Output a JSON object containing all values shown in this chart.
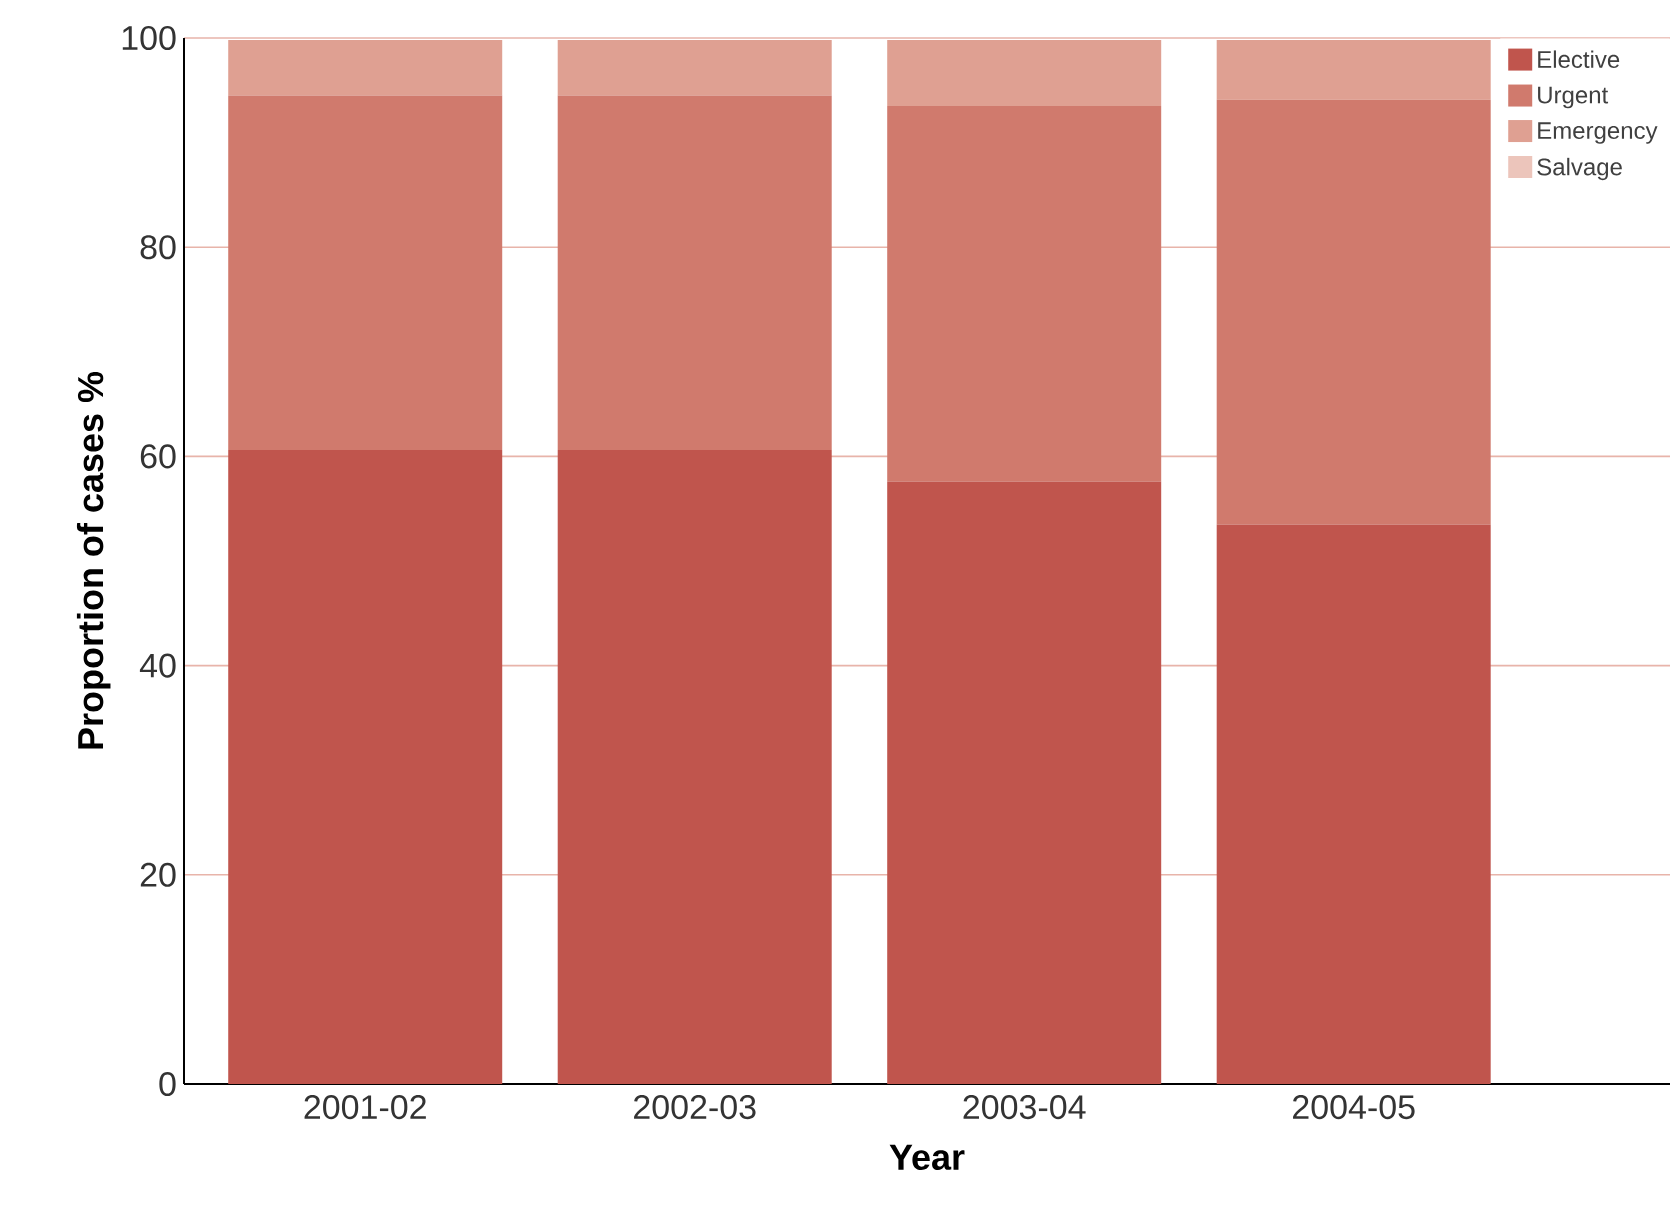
{
  "chart_data": {
    "type": "bar",
    "stacked": true,
    "xlabel": "Year",
    "ylabel": "Proportion of cases %",
    "categories": [
      "2001-02",
      "2002-03",
      "2003-04",
      "2004-05"
    ],
    "series": [
      {
        "name": "Elective",
        "color": "#c0554d",
        "values": [
          60.6,
          60.6,
          57.6,
          53.5
        ]
      },
      {
        "name": "Urgent",
        "color": "#d07a6d",
        "values": [
          33.9,
          33.9,
          35.9,
          40.6
        ]
      },
      {
        "name": "Emergency",
        "color": "#dfa092",
        "values": [
          5.3,
          5.3,
          6.3,
          5.7
        ]
      },
      {
        "name": "Salvage",
        "color": "#ecc5bb",
        "values": [
          null,
          null,
          null,
          null
        ]
      }
    ],
    "ylim": [
      0,
      100
    ],
    "yticks": [
      0,
      20,
      40,
      60,
      80,
      100
    ],
    "grid": "y",
    "legend": "top right"
  }
}
